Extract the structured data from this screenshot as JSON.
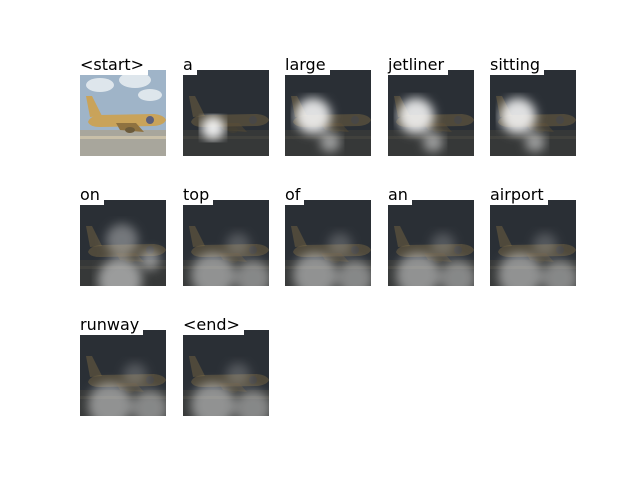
{
  "caption_words": [
    "<start>",
    "a",
    "large",
    "jetliner",
    "sitting",
    "on",
    "top",
    "of",
    "an",
    "airport",
    "runway",
    "<end>"
  ],
  "attention_focus": [
    "none",
    "nose",
    "forward-fuselage",
    "forward-fuselage",
    "forward-fuselage",
    "tail-and-ground",
    "ground",
    "ground",
    "ground",
    "ground",
    "ground",
    "ground"
  ],
  "colors": {
    "plane": "#c9a35a",
    "sky": "#9fb4c8",
    "runway": "#a8a69c",
    "dark": "#202427",
    "highlight": "#ffffff"
  }
}
